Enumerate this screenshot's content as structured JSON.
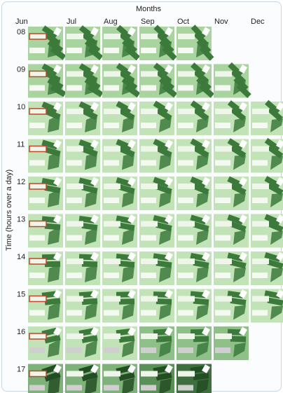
{
  "title": "Months",
  "months": [
    "Jun",
    "Jul",
    "Aug",
    "Sep",
    "Oct",
    "Nov",
    "Dec"
  ],
  "y_label": "Time (hours over a day)",
  "hours": [
    "08",
    "09",
    "10",
    "11",
    "12",
    "13",
    "14",
    "15",
    "16",
    "17"
  ]
}
